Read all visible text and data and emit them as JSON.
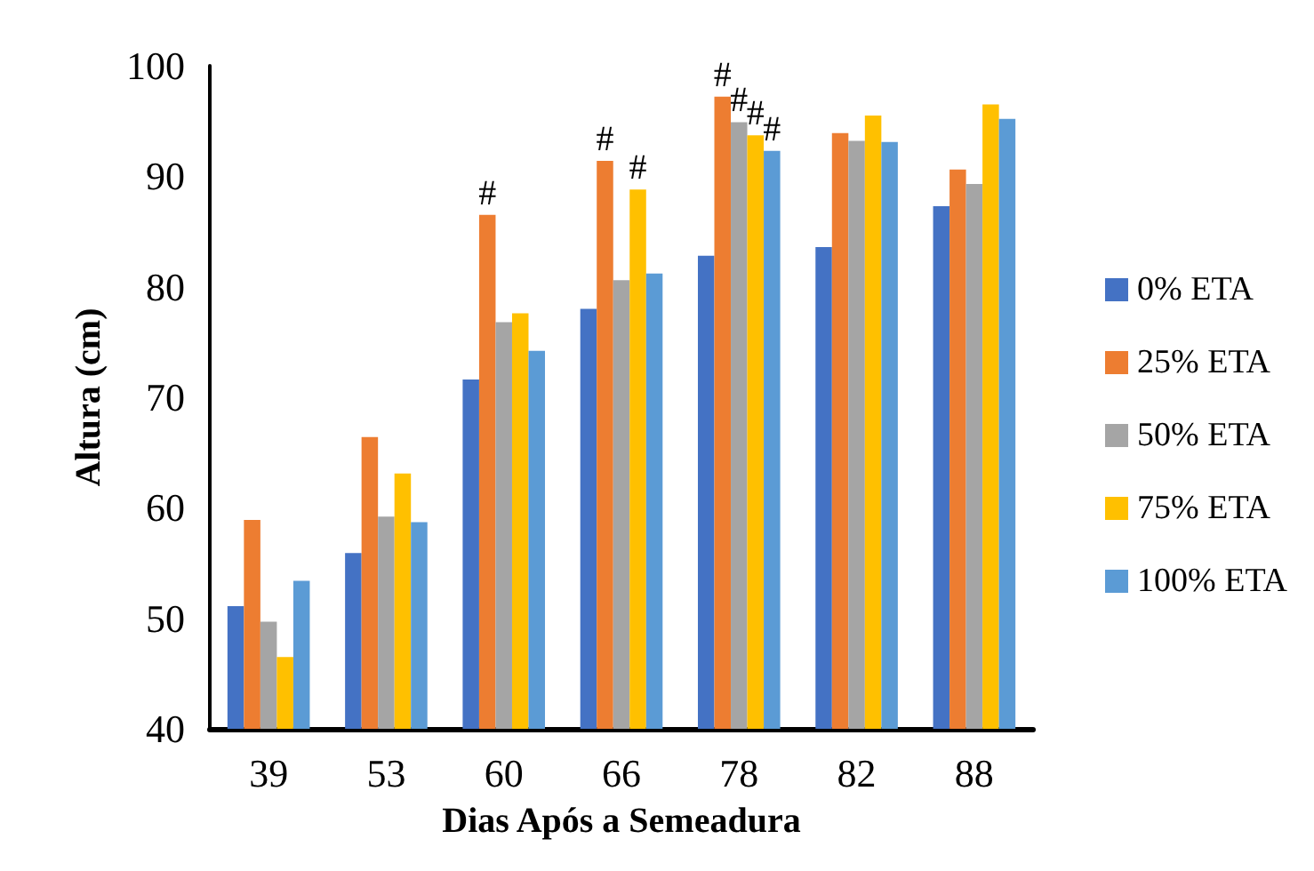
{
  "chart_data": {
    "type": "bar",
    "xlabel": "Dias Após a Semeadura",
    "ylabel": "Altura (cm)",
    "categories": [
      "39",
      "53",
      "60",
      "66",
      "78",
      "82",
      "88"
    ],
    "series": [
      {
        "name": "0% ETA",
        "color": "#4472c4",
        "values": [
          51.1,
          55.9,
          71.6,
          78.0,
          82.8,
          83.6,
          87.3
        ]
      },
      {
        "name": "25% ETA",
        "color": "#ed7d31",
        "values": [
          58.9,
          66.4,
          86.5,
          91.4,
          97.2,
          93.9,
          90.6
        ]
      },
      {
        "name": "50% ETA",
        "color": "#a5a5a5",
        "values": [
          49.7,
          59.2,
          76.8,
          80.6,
          94.9,
          93.2,
          89.3
        ]
      },
      {
        "name": "75% ETA",
        "color": "#ffc000",
        "values": [
          46.5,
          63.1,
          77.6,
          88.8,
          93.7,
          95.5,
          96.5
        ]
      },
      {
        "name": "100% ETA",
        "color": "#5b9bd5",
        "values": [
          53.4,
          58.7,
          74.2,
          81.2,
          92.3,
          93.1,
          95.2
        ]
      }
    ],
    "annotations": [
      {
        "text": "#",
        "x": "60",
        "y": 86.5
      },
      {
        "text": "#",
        "x": "66",
        "y": 91.4
      },
      {
        "text": "#",
        "x": "66",
        "y": 88.8
      },
      {
        "text": "#",
        "x": "78",
        "y": 97.2
      },
      {
        "text": "#",
        "x": "78",
        "y": 94.9
      },
      {
        "text": "#",
        "x": "78",
        "y": 93.7
      },
      {
        "text": "#",
        "x": "78",
        "y": 92.3
      }
    ],
    "ylim": [
      40,
      100
    ],
    "yticks": [
      40,
      50,
      60,
      70,
      80,
      90,
      100
    ],
    "grid": false,
    "legend": "right"
  }
}
